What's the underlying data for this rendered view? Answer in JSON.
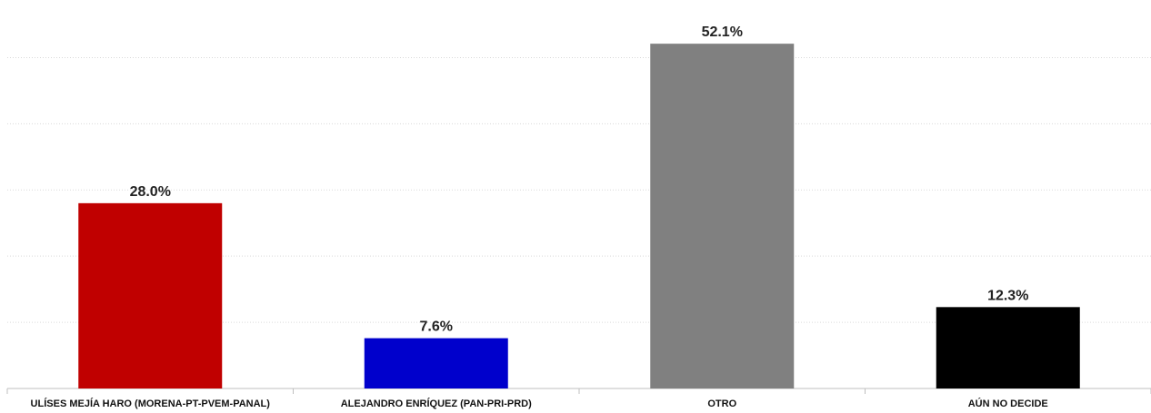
{
  "chart_data": {
    "type": "bar",
    "categories": [
      "ULÍSES MEJÍA HARO (MORENA-PT-PVEM-PANAL)",
      "ALEJANDRO ENRÍQUEZ  (PAN-PRI-PRD)",
      "OTRO",
      "AÚN NO DECIDE"
    ],
    "values": [
      28.0,
      7.6,
      52.1,
      12.3
    ],
    "value_labels": [
      "28.0%",
      "7.6%",
      "52.1%",
      "12.3%"
    ],
    "colors": [
      "#c00000",
      "#0000cc",
      "#808080",
      "#000000"
    ],
    "ylim": [
      0,
      55
    ],
    "grid": true,
    "legend": "none",
    "title": "",
    "xlabel": "",
    "ylabel": ""
  }
}
